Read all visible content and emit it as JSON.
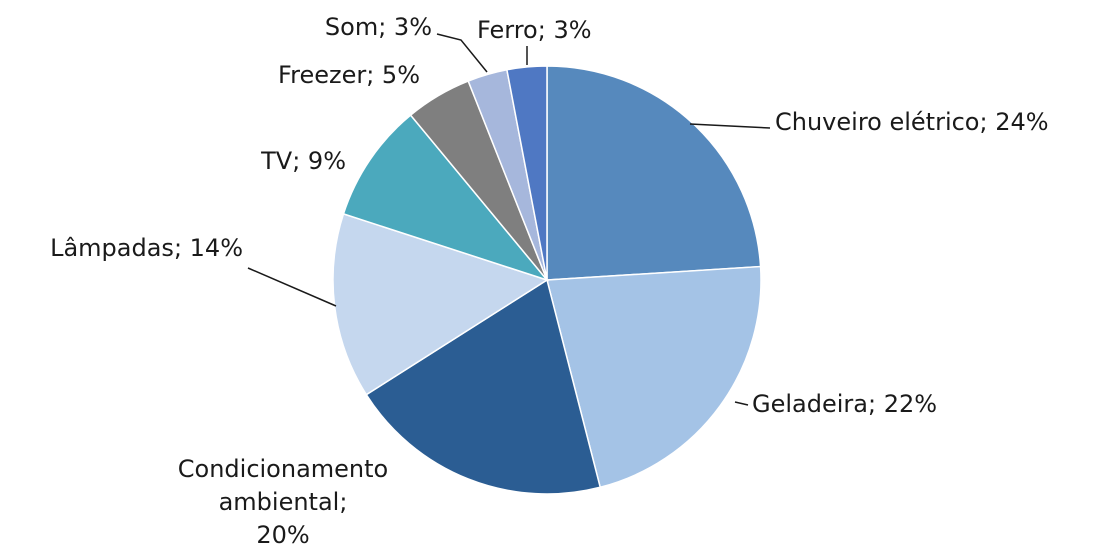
{
  "chart_data": {
    "type": "pie",
    "values": [
      24,
      22,
      20,
      14,
      9,
      5,
      3,
      3
    ],
    "value_labels": [
      "Chuveiro elétrico; 24%",
      "Geladeira; 22%",
      "Condicionamento\nambiental;\n20%",
      "Lâmpadas; 14%",
      "TV; 9%",
      "Freezer; 5%",
      "Som; 3%",
      "Ferro; 3%"
    ],
    "colors": [
      "#5689bd",
      "#a4c3e6",
      "#2b5d93",
      "#c5d7ee",
      "#4ba9bd",
      "#7f7f7f",
      "#a6b7dc",
      "#4f78c3"
    ]
  }
}
